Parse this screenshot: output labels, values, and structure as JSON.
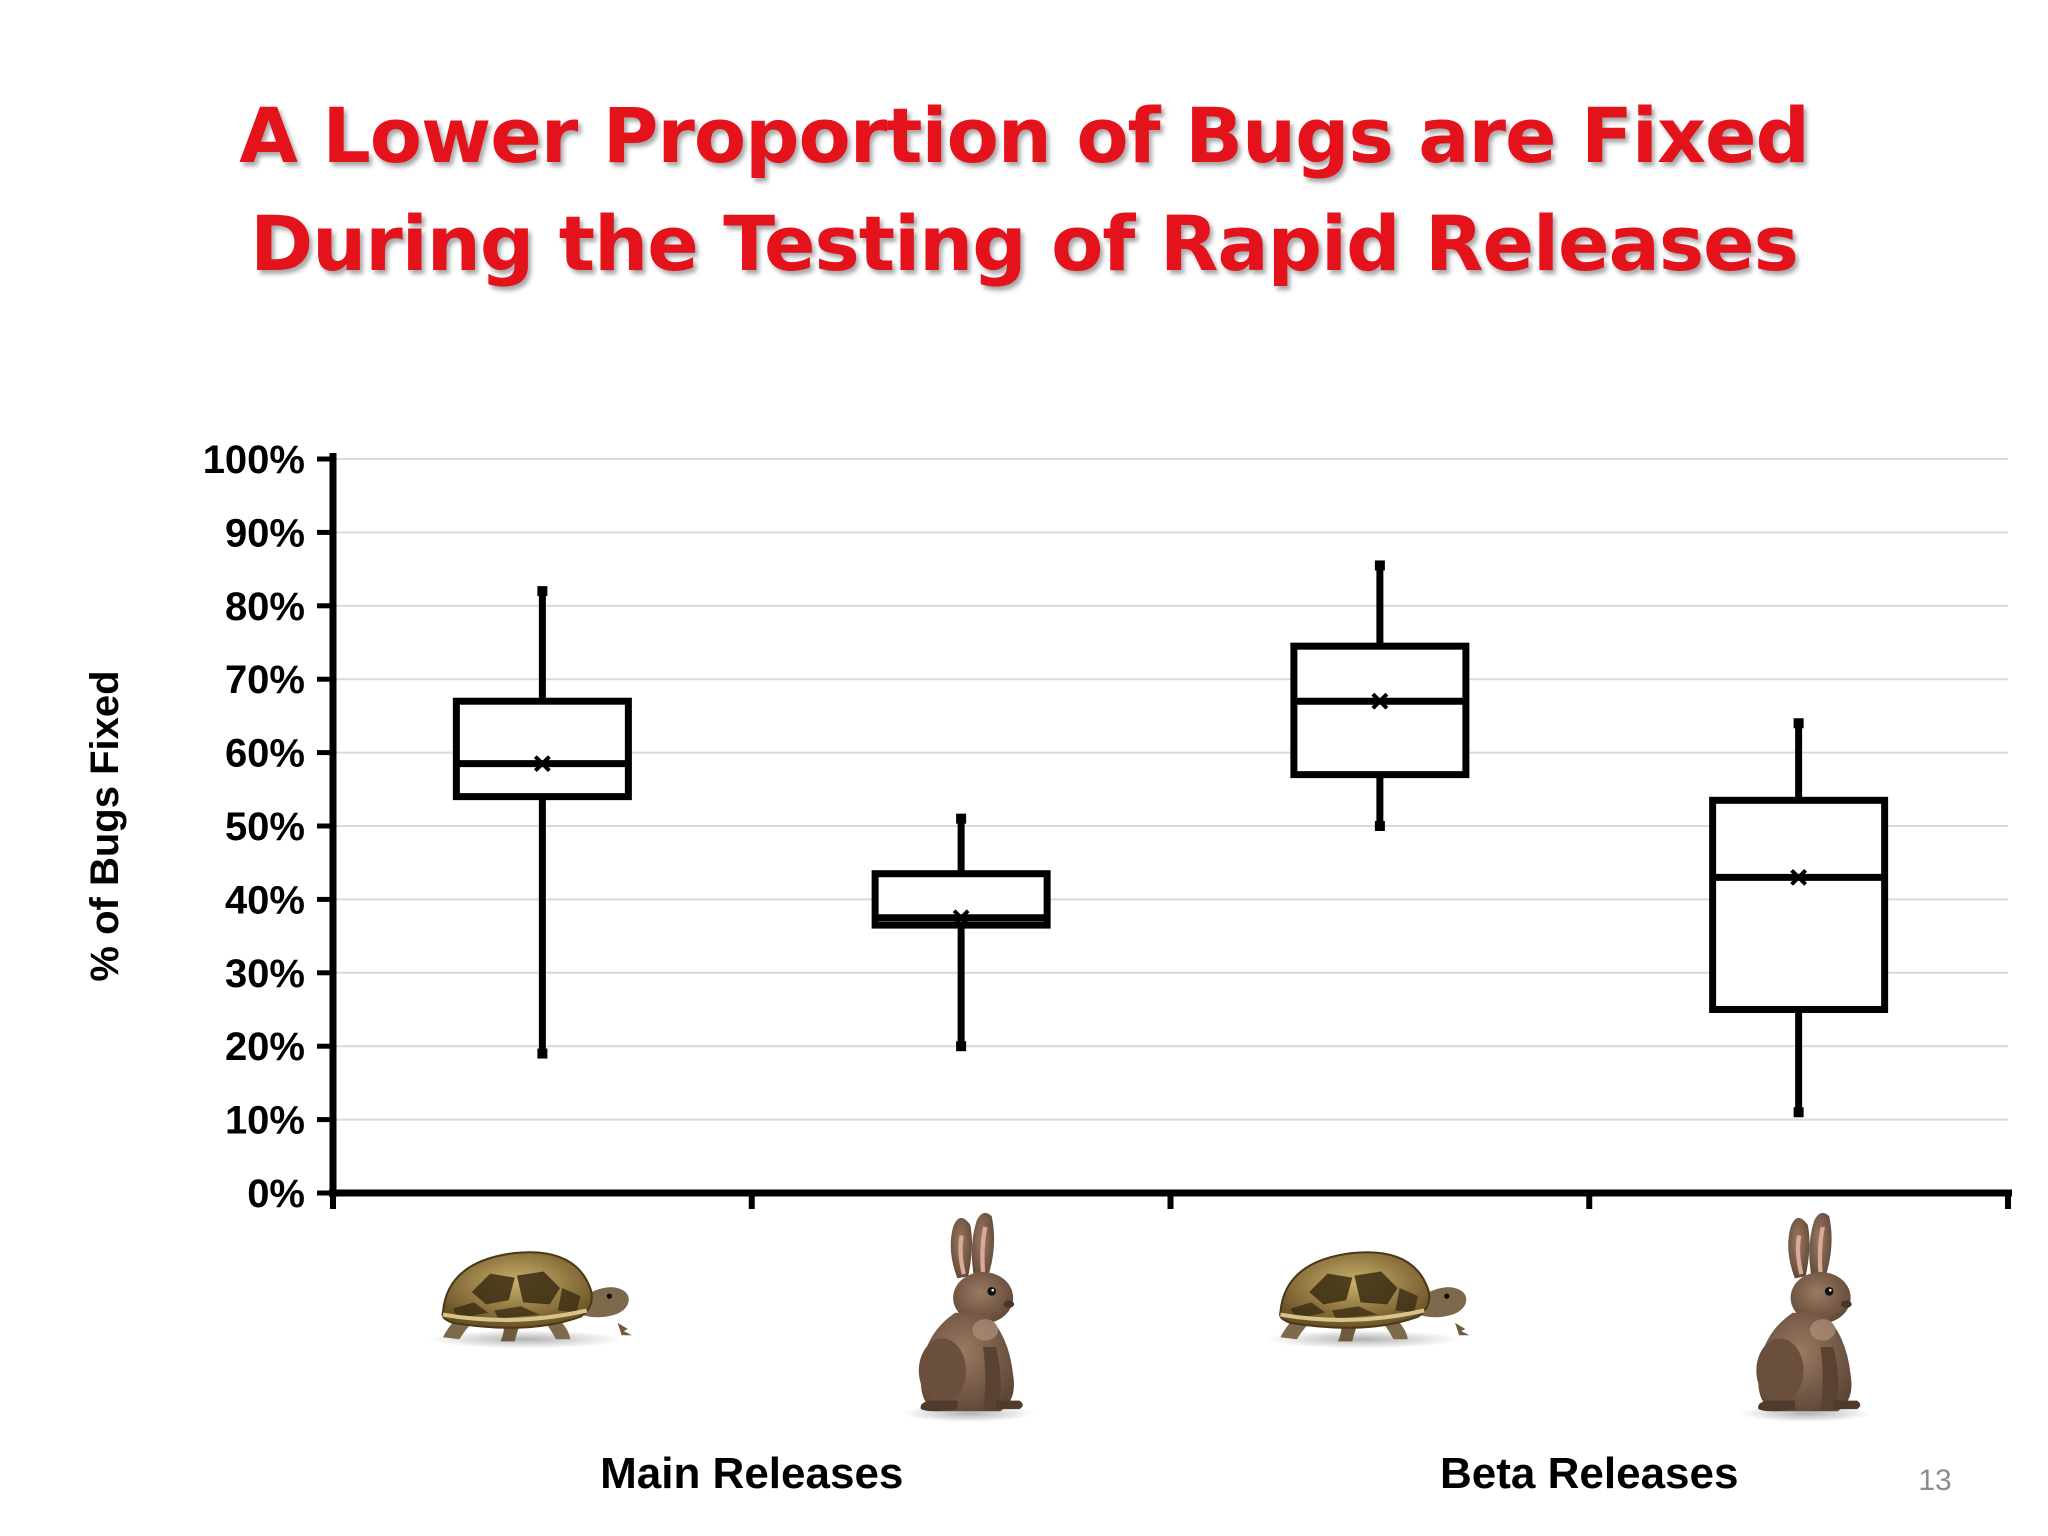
{
  "title_lines": [
    "A Lower Proportion of Bugs are Fixed",
    "During the Testing of Rapid Releases"
  ],
  "page_number": "13",
  "colors": {
    "title": "#e3121b",
    "box_stroke": "#000000",
    "grid": "#d9d9d9",
    "page_number": "#8c8c8c"
  },
  "chart_data": {
    "type": "box",
    "ylabel": "% of Bugs Fixed",
    "ylim": [
      0,
      100
    ],
    "yticks": [
      "0%",
      "10%",
      "20%",
      "30%",
      "40%",
      "50%",
      "60%",
      "70%",
      "80%",
      "90%",
      "100%"
    ],
    "grid": true,
    "legend": "none",
    "groups": [
      "Main Releases",
      "Beta Releases"
    ],
    "boxes": [
      {
        "group": "Main Releases",
        "release_type": "traditional",
        "icon": "tortoise-icon",
        "min": 19,
        "q1": 54,
        "median": 58.5,
        "mean": 58.5,
        "q3": 67,
        "max": 82
      },
      {
        "group": "Main Releases",
        "release_type": "rapid",
        "icon": "rabbit-icon",
        "min": 20,
        "q1": 36.5,
        "median": 37.5,
        "mean": 37.5,
        "q3": 43.5,
        "max": 51
      },
      {
        "group": "Beta Releases",
        "release_type": "traditional",
        "icon": "tortoise-icon",
        "min": 50,
        "q1": 57,
        "median": 67,
        "mean": 67,
        "q3": 74.5,
        "max": 85.5
      },
      {
        "group": "Beta Releases",
        "release_type": "rapid",
        "icon": "rabbit-icon",
        "min": 11,
        "q1": 25,
        "median": 43,
        "mean": 43,
        "q3": 53.5,
        "max": 64
      }
    ]
  }
}
